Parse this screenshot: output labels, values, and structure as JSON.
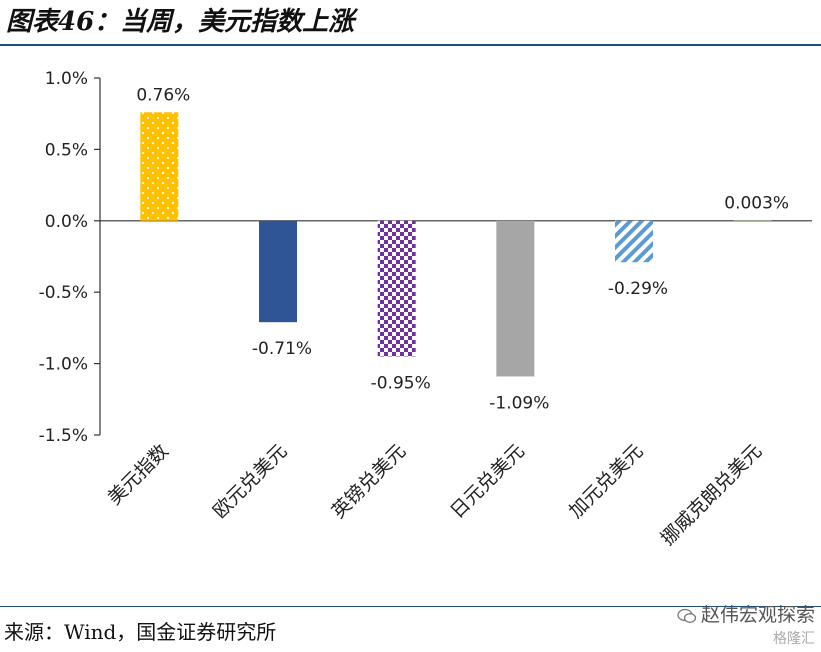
{
  "header": {
    "title": "图表46：当周，美元指数上涨"
  },
  "footer": {
    "source": "来源：Wind，国金证券研究所",
    "watermark_name": "赵伟宏观探索",
    "watermark_brand": "格隆汇"
  },
  "chart_data": {
    "type": "bar",
    "title": "图表46：当周，美元指数上涨",
    "xlabel": "",
    "ylabel": "",
    "categories": [
      "美元指数",
      "欧元兑美元",
      "英镑兑美元",
      "日元兑美元",
      "加元兑美元",
      "挪威克朗兑美元"
    ],
    "values": [
      0.76,
      -0.71,
      -0.95,
      -1.09,
      -0.29,
      0.003
    ],
    "data_labels": [
      "0.76%",
      "-0.71%",
      "-0.95%",
      "-1.09%",
      "-0.29%",
      "0.003%"
    ],
    "ylim": [
      -1.5,
      1.0
    ],
    "yticks": [
      1.0,
      0.5,
      0.0,
      -0.5,
      -1.0,
      -1.5
    ],
    "ytick_labels": [
      "1.0%",
      "0.5%",
      "0.0%",
      "-0.5%",
      "-1.0%",
      "-1.5%"
    ],
    "bar_colors": [
      "#ffc000",
      "#2f5597",
      "#7030a0",
      "#a6a6a6",
      "#5b9bd5",
      "#a9d18e"
    ],
    "bar_patterns": [
      "dots",
      "solid",
      "checker",
      "solid",
      "diagonal",
      "solid"
    ],
    "grid": false,
    "legend": "none"
  }
}
